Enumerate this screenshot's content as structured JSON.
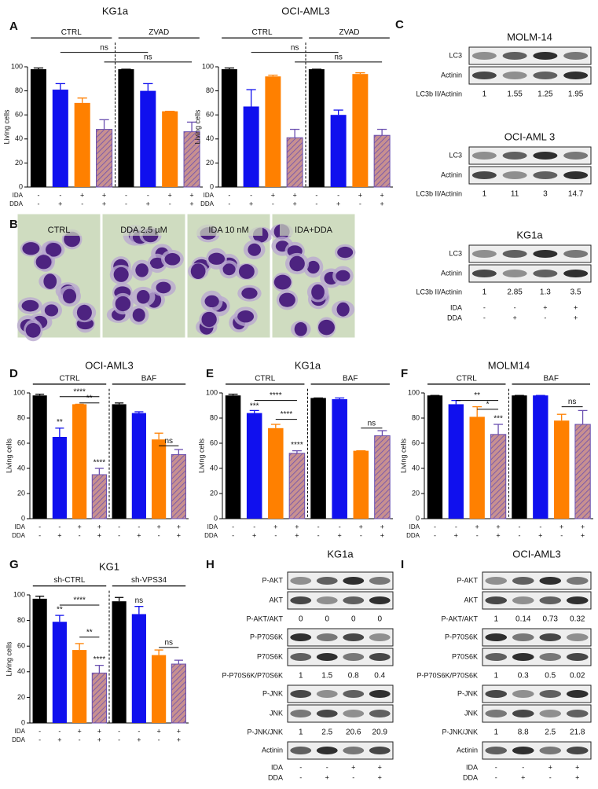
{
  "panel_letters": [
    "A",
    "B",
    "C",
    "D",
    "E",
    "F",
    "G",
    "H",
    "I"
  ],
  "chart_data": [
    {
      "type": "bar",
      "title": "KG1a",
      "y_label": "Living cells",
      "groups": [
        "CTRL",
        "ZVAD"
      ],
      "row_labels": [
        "IDA",
        "DDA"
      ],
      "conditions": [
        [
          "-",
          "-"
        ],
        [
          "-",
          "+"
        ],
        [
          "+",
          "-"
        ],
        [
          "+",
          "+"
        ],
        [
          "-",
          "-"
        ],
        [
          "-",
          "+"
        ],
        [
          "+",
          "-"
        ],
        [
          "+",
          "+"
        ]
      ],
      "values": [
        98,
        81,
        70,
        48,
        98,
        80,
        63,
        46
      ],
      "errors": [
        1,
        5,
        4,
        8,
        0,
        6,
        0,
        8
      ],
      "colors": [
        "#000000",
        "#1010ee",
        "#ff8000",
        "#c89090",
        "#000000",
        "#1010ee",
        "#ff8000",
        "#c89090"
      ],
      "hatched": [
        false,
        false,
        false,
        true,
        false,
        false,
        false,
        true
      ],
      "ylim": [
        0,
        100
      ],
      "yticks": [
        0,
        20,
        40,
        60,
        80,
        100
      ],
      "annotations": [
        "ns",
        "ns"
      ]
    },
    {
      "type": "bar",
      "title": "OCI-AML3",
      "y_label": "Living cells",
      "groups": [
        "CTRL",
        "ZVAD"
      ],
      "row_labels": [
        "IDA",
        "DDA"
      ],
      "conditions": [
        [
          "-",
          "-"
        ],
        [
          "-",
          "+"
        ],
        [
          "+",
          "-"
        ],
        [
          "+",
          "+"
        ],
        [
          "-",
          "-"
        ],
        [
          "-",
          "+"
        ],
        [
          "+",
          "-"
        ],
        [
          "+",
          "+"
        ]
      ],
      "values": [
        98,
        67,
        92,
        41,
        98,
        60,
        94,
        43
      ],
      "errors": [
        1,
        14,
        1,
        7,
        0,
        4,
        1,
        5
      ],
      "colors": [
        "#000000",
        "#1010ee",
        "#ff8000",
        "#c89090",
        "#000000",
        "#1010ee",
        "#ff8000",
        "#c89090"
      ],
      "hatched": [
        false,
        false,
        false,
        true,
        false,
        false,
        false,
        true
      ],
      "ylim": [
        0,
        100
      ],
      "yticks": [
        0,
        20,
        40,
        60,
        80,
        100
      ],
      "annotations": [
        "ns",
        "ns"
      ]
    },
    {
      "type": "bar",
      "title": "OCI-AML3",
      "y_label": "Living cells",
      "groups": [
        "CTRL",
        "BAF"
      ],
      "row_labels": [
        "IDA",
        "DDA"
      ],
      "conditions": [
        [
          "-",
          "-"
        ],
        [
          "-",
          "+"
        ],
        [
          "+",
          "-"
        ],
        [
          "+",
          "+"
        ],
        [
          "-",
          "-"
        ],
        [
          "-",
          "+"
        ],
        [
          "+",
          "-"
        ],
        [
          "+",
          "+"
        ]
      ],
      "values": [
        98,
        65,
        91,
        35,
        91,
        84,
        63,
        51
      ],
      "errors": [
        1,
        7,
        0,
        5,
        1,
        1,
        5,
        4
      ],
      "colors": [
        "#000000",
        "#1010ee",
        "#ff8000",
        "#c89090",
        "#000000",
        "#1010ee",
        "#ff8000",
        "#c89090"
      ],
      "hatched": [
        false,
        false,
        false,
        true,
        false,
        false,
        false,
        true
      ],
      "ylim": [
        0,
        100
      ],
      "yticks": [
        0,
        20,
        40,
        60,
        80,
        100
      ],
      "annotations": [
        "**",
        "****",
        "**",
        "****",
        "ns"
      ]
    },
    {
      "type": "bar",
      "title": "KG1a",
      "y_label": "Living cells",
      "groups": [
        "CTRL",
        "BAF"
      ],
      "row_labels": [
        "IDA",
        "DDA"
      ],
      "conditions": [
        [
          "-",
          "-"
        ],
        [
          "-",
          "+"
        ],
        [
          "+",
          "-"
        ],
        [
          "+",
          "+"
        ],
        [
          "-",
          "-"
        ],
        [
          "-",
          "+"
        ],
        [
          "+",
          "-"
        ],
        [
          "+",
          "+"
        ]
      ],
      "values": [
        98,
        84,
        72,
        52,
        96,
        95,
        54,
        66
      ],
      "errors": [
        1,
        2,
        3,
        2,
        0,
        1,
        0,
        4
      ],
      "colors": [
        "#000000",
        "#1010ee",
        "#ff8000",
        "#c89090",
        "#000000",
        "#1010ee",
        "#ff8000",
        "#c89090"
      ],
      "hatched": [
        false,
        false,
        false,
        true,
        false,
        false,
        false,
        true
      ],
      "ylim": [
        0,
        100
      ],
      "yticks": [
        0,
        20,
        40,
        60,
        80,
        100
      ],
      "annotations": [
        "***",
        "****",
        "****",
        "****",
        "ns"
      ]
    },
    {
      "type": "bar",
      "title": "MOLM14",
      "y_label": "Living cells",
      "groups": [
        "CTRL",
        "BAF"
      ],
      "row_labels": [
        "IDA",
        "DDA"
      ],
      "conditions": [
        [
          "-",
          "-"
        ],
        [
          "-",
          "+"
        ],
        [
          "+",
          "-"
        ],
        [
          "+",
          "+"
        ],
        [
          "-",
          "-"
        ],
        [
          "-",
          "+"
        ],
        [
          "+",
          "-"
        ],
        [
          "+",
          "+"
        ]
      ],
      "values": [
        98,
        91,
        81,
        67,
        98,
        98,
        78,
        75
      ],
      "errors": [
        0,
        3,
        8,
        8,
        0,
        0,
        5,
        11
      ],
      "colors": [
        "#000000",
        "#1010ee",
        "#ff8000",
        "#c89090",
        "#000000",
        "#1010ee",
        "#ff8000",
        "#c89090"
      ],
      "hatched": [
        false,
        false,
        false,
        true,
        false,
        false,
        false,
        true
      ],
      "ylim": [
        0,
        100
      ],
      "yticks": [
        0,
        20,
        40,
        60,
        80,
        100
      ],
      "annotations": [
        "**",
        "*",
        "***",
        "ns"
      ]
    },
    {
      "type": "bar",
      "title": "KG1",
      "y_label": "Living cells",
      "groups": [
        "sh-CTRL",
        "sh-VPS34"
      ],
      "row_labels": [
        "IDA",
        "DDA"
      ],
      "conditions": [
        [
          "-",
          "-"
        ],
        [
          "-",
          "+"
        ],
        [
          "+",
          "-"
        ],
        [
          "+",
          "+"
        ],
        [
          "-",
          "-"
        ],
        [
          "-",
          "+"
        ],
        [
          "+",
          "-"
        ],
        [
          "+",
          "+"
        ]
      ],
      "values": [
        97,
        79,
        57,
        39,
        95,
        85,
        53,
        46
      ],
      "errors": [
        2,
        5,
        5,
        6,
        3,
        6,
        4,
        3
      ],
      "colors": [
        "#000000",
        "#1010ee",
        "#ff8000",
        "#c89090",
        "#000000",
        "#1010ee",
        "#ff8000",
        "#c89090"
      ],
      "hatched": [
        false,
        false,
        false,
        true,
        false,
        false,
        false,
        true
      ],
      "ylim": [
        0,
        100
      ],
      "yticks": [
        0,
        20,
        40,
        60,
        80,
        100
      ],
      "annotations": [
        "**",
        "****",
        "**",
        "****",
        "ns",
        "ns"
      ]
    }
  ],
  "micrographs": {
    "labels": [
      "CTRL",
      "DDA 2.5 µM",
      "IDA 10 nM",
      "IDA+DDA"
    ]
  },
  "panel_c": {
    "blots": [
      {
        "title": "MOLM-14",
        "items": [
          {
            "label": "LC3"
          },
          {
            "label": "Actinin"
          },
          {
            "label": "LC3b II/Actinin",
            "values": [
              1,
              1.55,
              1.25,
              1.95
            ]
          }
        ]
      },
      {
        "title": "OCI-AML 3",
        "items": [
          {
            "label": "LC3"
          },
          {
            "label": "Actinin"
          },
          {
            "label": "LC3b II/Actinin",
            "values": [
              1,
              11,
              3,
              14.7
            ]
          }
        ]
      },
      {
        "title": "KG1a",
        "items": [
          {
            "label": "LC3"
          },
          {
            "label": "Actinin"
          },
          {
            "label": "LC3b II/Actinin",
            "values": [
              1,
              2.85,
              1.3,
              3.5
            ]
          }
        ]
      }
    ],
    "row_labels": [
      "IDA",
      "DDA"
    ],
    "conditions": [
      [
        "-",
        "-"
      ],
      [
        "-",
        "+"
      ],
      [
        "+",
        "-"
      ],
      [
        "+",
        "+"
      ]
    ]
  },
  "panel_h": {
    "title": "KG1a",
    "items": [
      {
        "label": "P-AKT"
      },
      {
        "label": "AKT"
      },
      {
        "label": "P-AKT/AKT",
        "values": [
          0,
          0,
          0,
          0
        ]
      },
      {
        "label": "P-P70S6K"
      },
      {
        "label": "P70S6K"
      },
      {
        "label": "P-P70S6K/P70S6K",
        "values": [
          1,
          1.5,
          0.8,
          0.4
        ]
      },
      {
        "label": "P-JNK"
      },
      {
        "label": "JNK"
      },
      {
        "label": "P-JNK/JNK",
        "values": [
          1,
          2.5,
          20.6,
          20.9
        ]
      },
      {
        "label": "Actinin"
      }
    ],
    "row_labels": [
      "IDA",
      "DDA"
    ],
    "conditions": [
      [
        "-",
        "-"
      ],
      [
        "-",
        "+"
      ],
      [
        "+",
        "-"
      ],
      [
        "+",
        "+"
      ]
    ]
  },
  "panel_i": {
    "title": "OCI-AML3",
    "items": [
      {
        "label": "P-AKT"
      },
      {
        "label": "AKT"
      },
      {
        "label": "P-AKT/AKT",
        "values": [
          1,
          0.14,
          0.73,
          0.32
        ]
      },
      {
        "label": "P-P70S6K"
      },
      {
        "label": "P70S6K"
      },
      {
        "label": "P-P70S6K/P70S6K",
        "values": [
          1,
          0.3,
          0.5,
          0.02
        ]
      },
      {
        "label": "P-JNK"
      },
      {
        "label": "JNK"
      },
      {
        "label": "P-JNK/JNK",
        "values": [
          1,
          8.8,
          2.5,
          21.8
        ]
      },
      {
        "label": "Actinin"
      }
    ],
    "row_labels": [
      "IDA",
      "DDA"
    ],
    "conditions": [
      [
        "-",
        "-"
      ],
      [
        "-",
        "+"
      ],
      [
        "+",
        "-"
      ],
      [
        "+",
        "+"
      ]
    ]
  }
}
